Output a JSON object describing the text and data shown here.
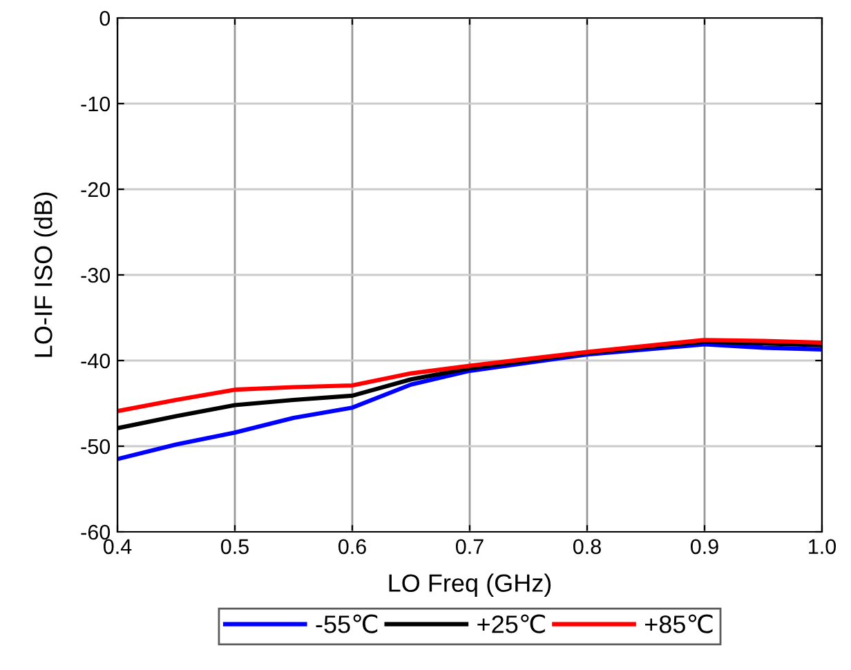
{
  "chart_data": {
    "type": "line",
    "xlabel": "LO Freq (GHz)",
    "ylabel": "LO-IF ISO (dB)",
    "x": [
      0.4,
      0.45,
      0.5,
      0.55,
      0.6,
      0.65,
      0.7,
      0.8,
      0.9,
      0.95,
      1.0
    ],
    "series": [
      {
        "name": "-55℃",
        "color": "#0000ff",
        "values": [
          -51.5,
          -49.8,
          -48.4,
          -46.7,
          -45.5,
          -42.8,
          -41.2,
          -39.3,
          -38.1,
          -38.5,
          -38.7
        ]
      },
      {
        "name": "+25℃",
        "color": "#000000",
        "values": [
          -47.9,
          -46.5,
          -45.2,
          -44.6,
          -44.1,
          -42.2,
          -40.9,
          -39.1,
          -37.8,
          -38.0,
          -38.2
        ]
      },
      {
        "name": "+85℃",
        "color": "#ff0000",
        "values": [
          -45.9,
          -44.6,
          -43.4,
          -43.1,
          -42.9,
          -41.5,
          -40.6,
          -39.0,
          -37.6,
          -37.7,
          -37.9
        ]
      }
    ],
    "xlim": [
      0.4,
      1.0
    ],
    "xticks": [
      0.4,
      0.5,
      0.6,
      0.7,
      0.8,
      0.9,
      {
        "value": 1.0,
        "label": "1.0"
      }
    ],
    "ylim": [
      -60,
      0
    ],
    "yticks": [
      -60,
      -50,
      -40,
      -30,
      -20,
      -10,
      0
    ],
    "grid": true,
    "legend": "bottom",
    "marker": "none",
    "line_style": "solid"
  }
}
